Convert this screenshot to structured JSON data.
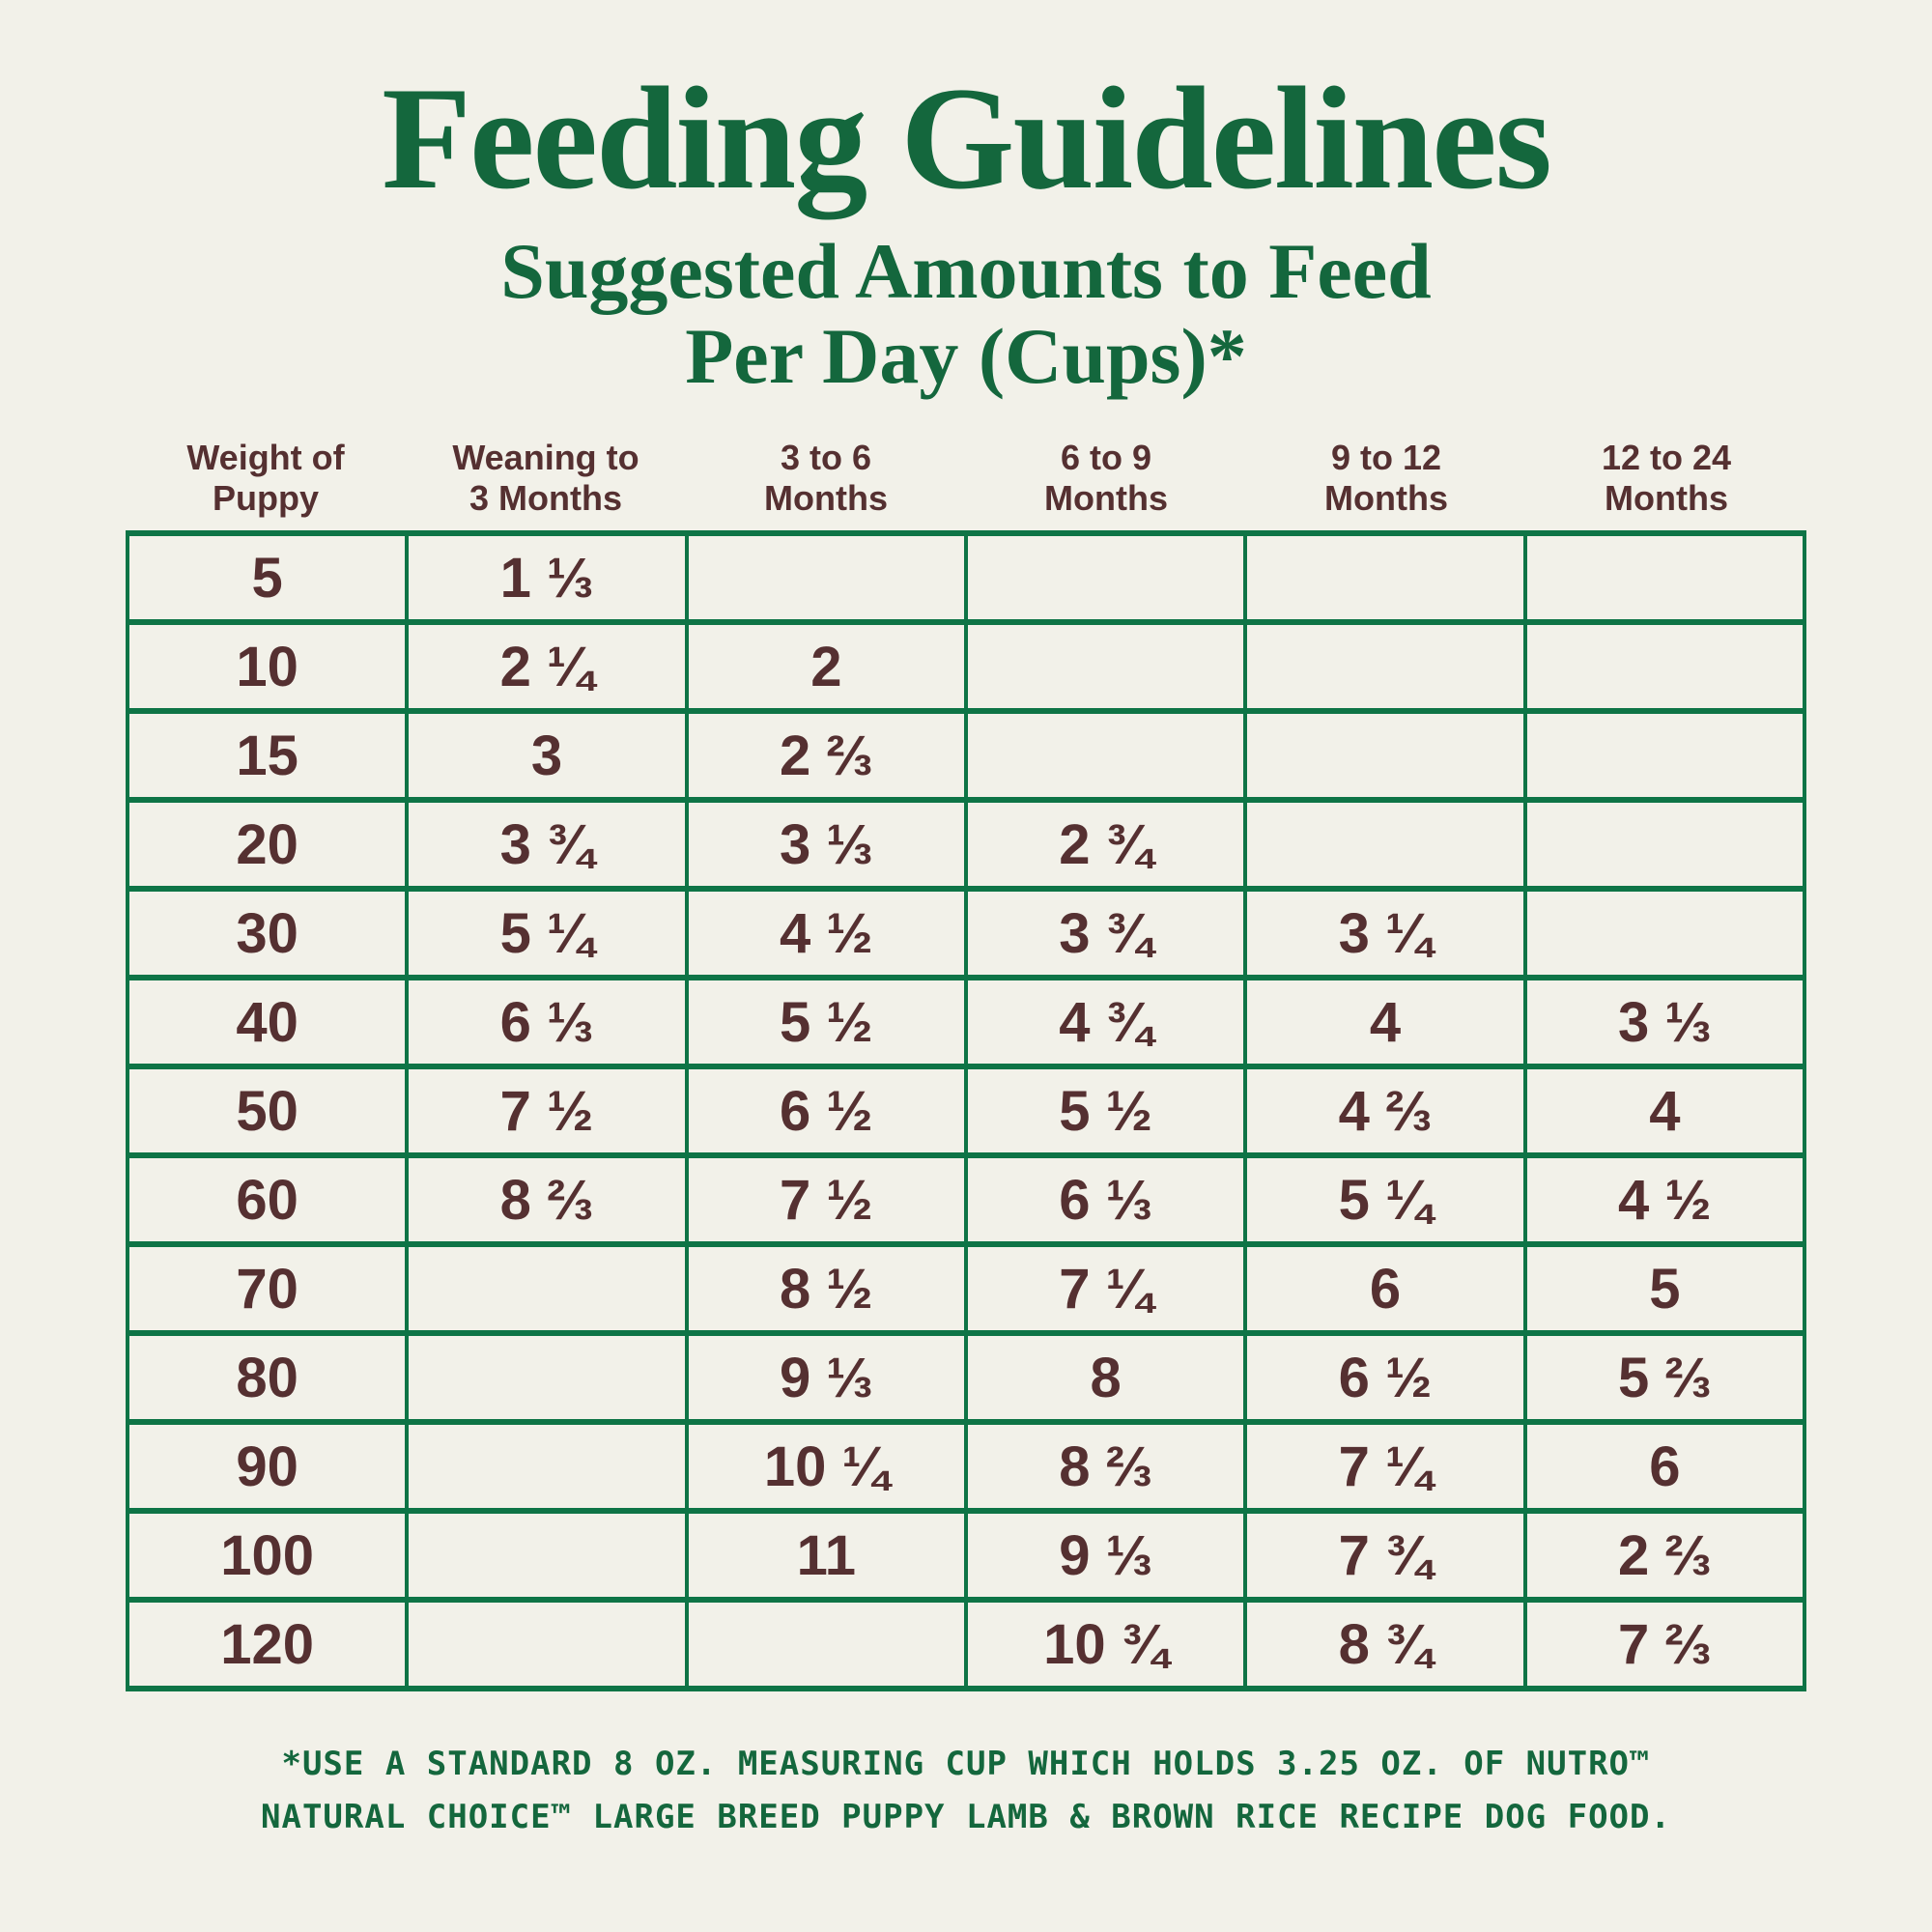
{
  "title": "Feeding Guidelines",
  "subtitle": {
    "line1": "Suggested Amounts to Feed",
    "line2": "Per Day (Cups)*"
  },
  "table": {
    "columns": [
      "Weight of\nPuppy",
      "Weaning to\n3 Months",
      "3 to 6\nMonths",
      "6 to 9\nMonths",
      "9 to 12\nMonths",
      "12 to 24\nMonths"
    ],
    "rows": [
      [
        "5",
        "1 ⅓",
        "",
        "",
        "",
        ""
      ],
      [
        "10",
        "2 ¼",
        "2",
        "",
        "",
        ""
      ],
      [
        "15",
        "3",
        "2 ⅔",
        "",
        "",
        ""
      ],
      [
        "20",
        "3 ¾",
        "3 ⅓",
        "2 ¾",
        "",
        ""
      ],
      [
        "30",
        "5 ¼",
        "4 ½",
        "3 ¾",
        "3 ¼",
        ""
      ],
      [
        "40",
        "6 ⅓",
        "5 ½",
        "4 ¾",
        "4",
        "3 ⅓"
      ],
      [
        "50",
        "7 ½",
        "6 ½",
        "5 ½",
        "4 ⅔",
        "4"
      ],
      [
        "60",
        "8 ⅔",
        "7 ½",
        "6 ⅓",
        "5 ¼",
        "4 ½"
      ],
      [
        "70",
        "",
        "8 ½",
        "7 ¼",
        "6",
        "5"
      ],
      [
        "80",
        "",
        "9 ⅓",
        "8",
        "6 ½",
        "5 ⅔"
      ],
      [
        "90",
        "",
        "10 ¼",
        "8 ⅔",
        "7 ¼",
        "6"
      ],
      [
        "100",
        "",
        "11",
        "9 ⅓",
        "7 ¾",
        "2 ⅔"
      ],
      [
        "120",
        "",
        "",
        "10 ¾",
        "8 ¾",
        "7 ⅔"
      ]
    ]
  },
  "footnote": {
    "line1": "*USE A STANDARD 8 OZ. MEASURING CUP WHICH HOLDS 3.25 OZ. OF NUTRO™",
    "line2": "NATURAL CHOICE™ LARGE BREED PUPPY LAMB & BROWN RICE RECIPE DOG FOOD."
  },
  "colors": {
    "background": "#F2F1E9",
    "heading_green": "#14673D",
    "table_border_green": "#0E7446",
    "text_maroon": "#553031"
  }
}
